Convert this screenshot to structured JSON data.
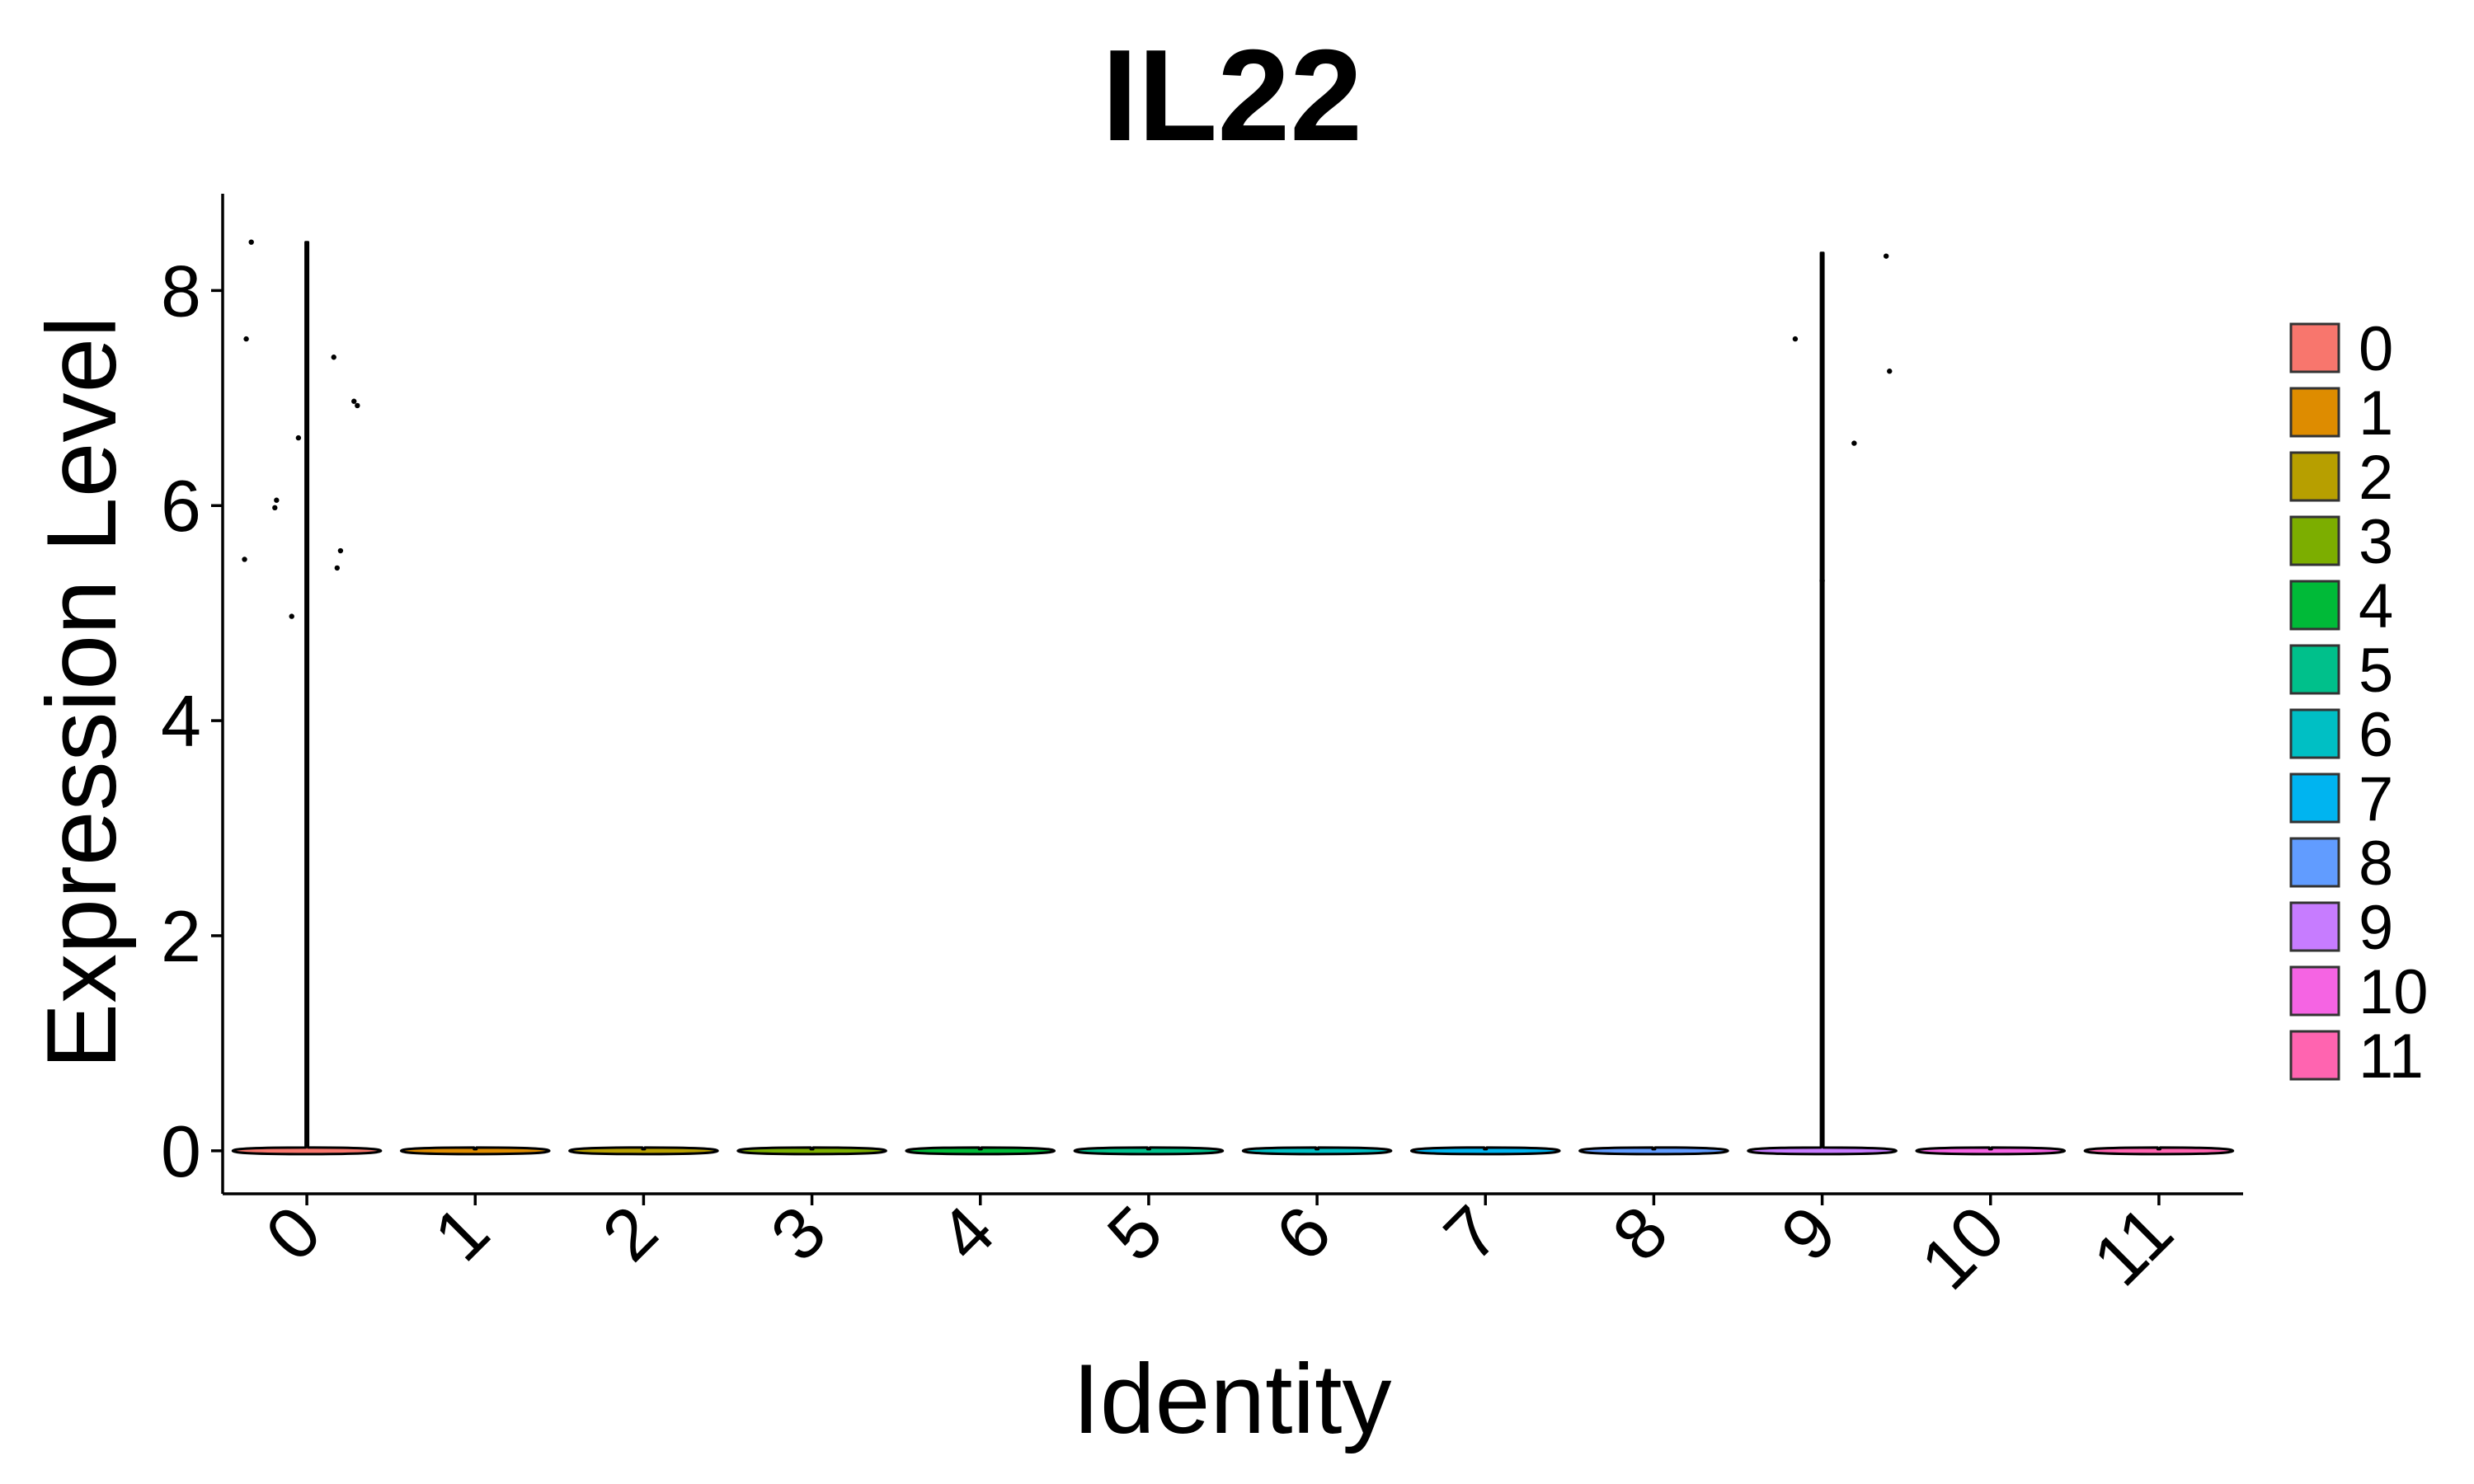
{
  "chart_data": {
    "type": "violin",
    "title": "IL22",
    "xlabel": "Identity",
    "ylabel": "Expression Level",
    "ylim": [
      -0.4,
      8.9
    ],
    "yticks": [
      0,
      2,
      4,
      6,
      8
    ],
    "categories": [
      "0",
      "1",
      "2",
      "3",
      "4",
      "5",
      "6",
      "7",
      "8",
      "9",
      "10",
      "11"
    ],
    "colors": [
      "#F8766D",
      "#DE8C00",
      "#B79F00",
      "#7CAE00",
      "#00BA38",
      "#00C08B",
      "#00BFC4",
      "#00B4F0",
      "#619CFF",
      "#C77CFF",
      "#F564E3",
      "#FF64B0"
    ],
    "violin_max": [
      8.45,
      0,
      0,
      0,
      0,
      0,
      0,
      0,
      0,
      8.35,
      0,
      0
    ],
    "points": [
      {
        "group": "0",
        "x_offset": -0.37,
        "y": 5.5
      },
      {
        "group": "0",
        "x_offset": -0.36,
        "y": 7.55
      },
      {
        "group": "0",
        "x_offset": -0.33,
        "y": 8.45
      },
      {
        "group": "0",
        "x_offset": -0.19,
        "y": 5.98
      },
      {
        "group": "0",
        "x_offset": -0.18,
        "y": 6.05
      },
      {
        "group": "0",
        "x_offset": -0.09,
        "y": 4.97
      },
      {
        "group": "0",
        "x_offset": -0.05,
        "y": 6.63
      },
      {
        "group": "0",
        "x_offset": 0.16,
        "y": 7.38
      },
      {
        "group": "0",
        "x_offset": 0.18,
        "y": 5.42
      },
      {
        "group": "0",
        "x_offset": 0.2,
        "y": 5.58
      },
      {
        "group": "0",
        "x_offset": 0.28,
        "y": 6.97
      },
      {
        "group": "0",
        "x_offset": 0.3,
        "y": 6.93
      },
      {
        "group": "9",
        "x_offset": -0.16,
        "y": 7.55
      },
      {
        "group": "9",
        "x_offset": 0.0,
        "y": 5.3
      },
      {
        "group": "9",
        "x_offset": 0.19,
        "y": 6.58
      },
      {
        "group": "9",
        "x_offset": 0.38,
        "y": 8.32
      },
      {
        "group": "9",
        "x_offset": 0.4,
        "y": 7.25
      }
    ],
    "legend": {
      "position": "right",
      "entries": [
        "0",
        "1",
        "2",
        "3",
        "4",
        "5",
        "6",
        "7",
        "8",
        "9",
        "10",
        "11"
      ]
    }
  }
}
